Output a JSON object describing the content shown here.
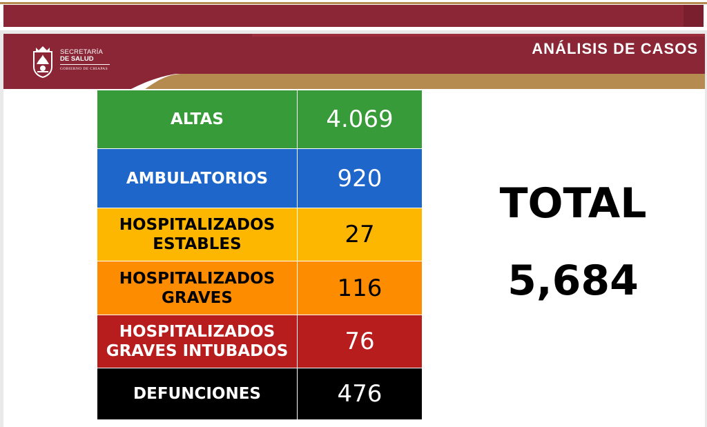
{
  "logo": {
    "line1": "SECRETARÍA",
    "line2": "DE SALUD",
    "line3": "GOBIERNO DE CHIAPAS",
    "seal_icon": "chiapas-coat-of-arms-icon"
  },
  "header": {
    "title": "ANÁLISIS DE CASOS"
  },
  "colors": {
    "maroon": "#8a2636",
    "gold": "#b58b4f",
    "green": "#389b3a",
    "blue": "#1e66c9",
    "yellow": "#fdb700",
    "orange": "#fd8c00",
    "red": "#b81d1d",
    "black": "#000000"
  },
  "cases": [
    {
      "label": "ALTAS",
      "value": "4.069",
      "color": "#389b3a",
      "text_color": "#ffffff"
    },
    {
      "label": "AMBULATORIOS",
      "value": "920",
      "color": "#1e66c9",
      "text_color": "#ffffff"
    },
    {
      "label": "HOSPITALIZADOS ESTABLES",
      "value": "27",
      "color": "#fdb700",
      "text_color": "#000000"
    },
    {
      "label": "HOSPITALIZADOS GRAVES",
      "value": "116",
      "color": "#fd8c00",
      "text_color": "#000000"
    },
    {
      "label": "HOSPITALIZADOS GRAVES INTUBADOS",
      "value": "76",
      "color": "#b81d1d",
      "text_color": "#ffffff"
    },
    {
      "label": "DEFUNCIONES",
      "value": "476",
      "color": "#000000",
      "text_color": "#ffffff"
    }
  ],
  "total": {
    "label": "TOTAL",
    "value": "5,684"
  }
}
